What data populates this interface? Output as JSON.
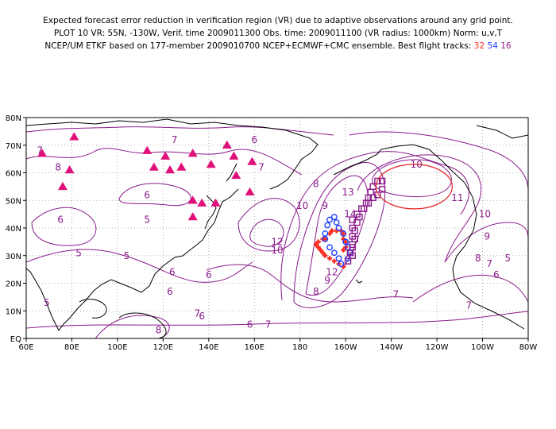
{
  "title": {
    "line1": "Expected forecast error reduction in verification region (VR) due to adaptive observations around any grid point.",
    "line2": "PLOT 10 VR: 55N, -130W, Verif. time 2009011300 Obs. time: 2009011100 (VR radius: 1000km) Norm: u,v,T",
    "line3_prefix": "NCEP/UM ETKF based on 177-member 2009010700 NCEP+ECMWF+CMC ensemble. Best flight tracks:",
    "track_a": "32",
    "track_b": "54",
    "track_c": "16"
  },
  "colors": {
    "contour": "#8a1a8a",
    "coast": "#000000",
    "track_a": "#ff2a1a",
    "track_b": "#1f3fff",
    "track_c": "#8a1a8a",
    "triangle": "#e0107a",
    "vr_circle": "#e02020"
  },
  "axes": {
    "x_ticks": [
      "60E",
      "80E",
      "100E",
      "120E",
      "140E",
      "160E",
      "180",
      "160W",
      "140W",
      "120W",
      "100W",
      "80W"
    ],
    "y_ticks": [
      "EQ",
      "10N",
      "20N",
      "30N",
      "40N",
      "50N",
      "60N",
      "70N",
      "80N"
    ]
  },
  "map_data": {
    "lon_range": [
      60,
      280
    ],
    "lat_range": [
      0,
      80
    ],
    "contour_interval": 1,
    "contour_labels": [
      {
        "v": "7",
        "lon": 66,
        "lat": 68
      },
      {
        "v": "8",
        "lon": 74,
        "lat": 62
      },
      {
        "v": "7",
        "lon": 125,
        "lat": 72
      },
      {
        "v": "6",
        "lon": 160,
        "lat": 72
      },
      {
        "v": "6",
        "lon": 113,
        "lat": 52
      },
      {
        "v": "6",
        "lon": 75,
        "lat": 43
      },
      {
        "v": "5",
        "lon": 113,
        "lat": 43
      },
      {
        "v": "5",
        "lon": 83,
        "lat": 31
      },
      {
        "v": "5",
        "lon": 104,
        "lat": 30
      },
      {
        "v": "6",
        "lon": 124,
        "lat": 24
      },
      {
        "v": "6",
        "lon": 140,
        "lat": 23
      },
      {
        "v": "7",
        "lon": 163,
        "lat": 62
      },
      {
        "v": "8",
        "lon": 187,
        "lat": 56
      },
      {
        "v": "9",
        "lon": 191,
        "lat": 48
      },
      {
        "v": "10",
        "lon": 181,
        "lat": 48
      },
      {
        "v": "12",
        "lon": 170,
        "lat": 35
      },
      {
        "v": "10",
        "lon": 170,
        "lat": 32
      },
      {
        "v": "14",
        "lon": 202,
        "lat": 45
      },
      {
        "v": "13",
        "lon": 201,
        "lat": 53
      },
      {
        "v": "12",
        "lon": 194,
        "lat": 24
      },
      {
        "v": "9",
        "lon": 192,
        "lat": 21
      },
      {
        "v": "8",
        "lon": 187,
        "lat": 17
      },
      {
        "v": "10",
        "lon": 231,
        "lat": 63
      },
      {
        "v": "11",
        "lon": 249,
        "lat": 51
      },
      {
        "v": "10",
        "lon": 261,
        "lat": 45
      },
      {
        "v": "9",
        "lon": 262,
        "lat": 37
      },
      {
        "v": "8",
        "lon": 258,
        "lat": 29
      },
      {
        "v": "7",
        "lon": 263,
        "lat": 27
      },
      {
        "v": "6",
        "lon": 266,
        "lat": 23
      },
      {
        "v": "5",
        "lon": 271,
        "lat": 29
      },
      {
        "v": "7",
        "lon": 254,
        "lat": 12
      },
      {
        "v": "7",
        "lon": 222,
        "lat": 16
      },
      {
        "v": "7",
        "lon": 166,
        "lat": 5
      },
      {
        "v": "6",
        "lon": 158,
        "lat": 5
      },
      {
        "v": "8",
        "lon": 118,
        "lat": 3
      },
      {
        "v": "7",
        "lon": 135,
        "lat": 9
      },
      {
        "v": "6",
        "lon": 123,
        "lat": 17
      },
      {
        "v": "5",
        "lon": 69,
        "lat": 13
      },
      {
        "v": "6",
        "lon": 137,
        "lat": 8
      }
    ],
    "triangles": [
      [
        67,
        67
      ],
      [
        81,
        73
      ],
      [
        76,
        55
      ],
      [
        79,
        61
      ],
      [
        113,
        68
      ],
      [
        116,
        62
      ],
      [
        121,
        66
      ],
      [
        123,
        61
      ],
      [
        128,
        62
      ],
      [
        133,
        67
      ],
      [
        141,
        63
      ],
      [
        148,
        70
      ],
      [
        151,
        66
      ],
      [
        152,
        59
      ],
      [
        159,
        64
      ],
      [
        158,
        53
      ],
      [
        133,
        50
      ],
      [
        137,
        49
      ],
      [
        143,
        49
      ],
      [
        133,
        44
      ]
    ],
    "track_a": [
      [
        199,
        26
      ],
      [
        197,
        27
      ],
      [
        195,
        28
      ],
      [
        193,
        29
      ],
      [
        191,
        30
      ],
      [
        190,
        31
      ],
      [
        189,
        32
      ],
      [
        188,
        33
      ],
      [
        187,
        34
      ],
      [
        188,
        35
      ],
      [
        190,
        36
      ],
      [
        191,
        36
      ],
      [
        193,
        38
      ],
      [
        194,
        39
      ],
      [
        196,
        39
      ],
      [
        198,
        39
      ],
      [
        199,
        38
      ],
      [
        199,
        36
      ],
      [
        200,
        35
      ],
      [
        200,
        33
      ],
      [
        199,
        32
      ]
    ],
    "track_b": [
      [
        198,
        27
      ],
      [
        197,
        29
      ],
      [
        195,
        31
      ],
      [
        193,
        33
      ],
      [
        191,
        36
      ],
      [
        191,
        38
      ],
      [
        192,
        41
      ],
      [
        193,
        43
      ],
      [
        195,
        44
      ],
      [
        196,
        42
      ],
      [
        197,
        40
      ],
      [
        199,
        38
      ],
      [
        200,
        35
      ],
      [
        201,
        33
      ],
      [
        202,
        31
      ],
      [
        201,
        29
      ]
    ],
    "track_c": [
      [
        201,
        28
      ],
      [
        202,
        31
      ],
      [
        203,
        34
      ],
      [
        203,
        37
      ],
      [
        203,
        40
      ],
      [
        203,
        43
      ],
      [
        205,
        45
      ],
      [
        207,
        47
      ],
      [
        209,
        49
      ],
      [
        210,
        51
      ],
      [
        211,
        53
      ],
      [
        212,
        55
      ],
      [
        214,
        57
      ],
      [
        216,
        57
      ],
      [
        216,
        54
      ],
      [
        214,
        52
      ],
      [
        212,
        51
      ],
      [
        210,
        49
      ],
      [
        208,
        47
      ],
      [
        206,
        44
      ],
      [
        205,
        42
      ],
      [
        204,
        39
      ],
      [
        204,
        36
      ],
      [
        203,
        33
      ],
      [
        203,
        30
      ]
    ],
    "vr_center": {
      "lon": 230,
      "lat": 55
    }
  }
}
